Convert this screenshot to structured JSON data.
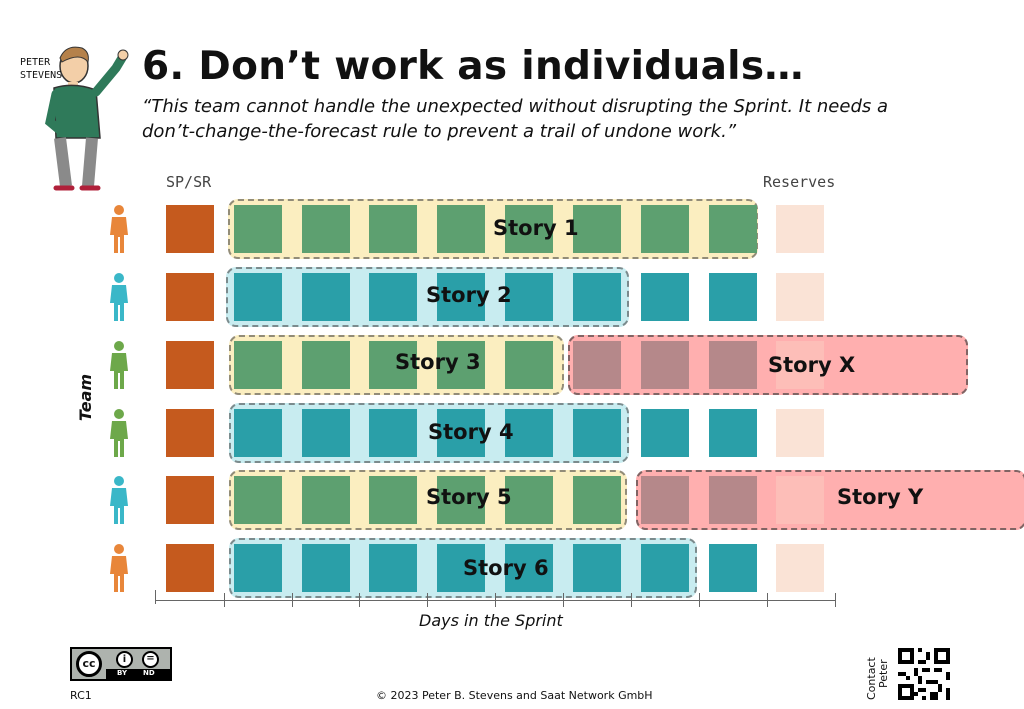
{
  "author_badge": {
    "name_line1": "PETER",
    "name_line2": "STEVENS"
  },
  "title": "6. Don’t work as individuals…",
  "quote": "“This team cannot handle the unexpected without disrupting the Sprint. It needs a don’t-change-the-forecast rule to prevent a trail of undone work.”",
  "column_labels": {
    "sp_sr": "SP/SR",
    "reserves": "Reserves"
  },
  "axis": {
    "y_label": "Team",
    "x_label": "Days in the Sprint"
  },
  "colors": {
    "sp_sr": "#c55a1e",
    "green": "#5da070",
    "teal": "#2a9fa8",
    "slate": "#5b6b70",
    "reserve": "#fae3d6",
    "yellow_band": "#fbeec0",
    "blue_band": "#c8ecf0",
    "red_band": "#ffb8b8",
    "person_orange": "#e8863a",
    "person_cyan": "#3ab7c8",
    "person_green": "#6da84a"
  },
  "team": [
    {
      "person_color": "orange",
      "cells": [
        "green",
        "green",
        "green",
        "green",
        "green",
        "green",
        "green",
        "green"
      ]
    },
    {
      "person_color": "cyan",
      "cells": [
        "teal",
        "teal",
        "teal",
        "teal",
        "teal",
        "teal",
        "teal",
        "teal"
      ]
    },
    {
      "person_color": "green",
      "cells": [
        "green",
        "green",
        "green",
        "green",
        "green",
        "slate",
        "slate",
        "slate"
      ]
    },
    {
      "person_color": "green",
      "cells": [
        "teal",
        "teal",
        "teal",
        "teal",
        "teal",
        "teal",
        "teal",
        "teal"
      ]
    },
    {
      "person_color": "cyan",
      "cells": [
        "green",
        "green",
        "green",
        "green",
        "green",
        "green",
        "slate",
        "slate"
      ]
    },
    {
      "person_color": "orange",
      "cells": [
        "teal",
        "teal",
        "teal",
        "teal",
        "teal",
        "teal",
        "teal",
        "teal"
      ]
    }
  ],
  "stories": [
    {
      "label": "Story 1",
      "color": "yellow"
    },
    {
      "label": "Story 2",
      "color": "blue"
    },
    {
      "label": "Story 3",
      "color": "yellow"
    },
    {
      "label": "Story X",
      "color": "red"
    },
    {
      "label": "Story 4",
      "color": "blue"
    },
    {
      "label": "Story 5",
      "color": "yellow"
    },
    {
      "label": "Story Y",
      "color": "red"
    },
    {
      "label": "Story 6",
      "color": "blue"
    }
  ],
  "footer": {
    "license": {
      "cc": "cc",
      "by": "BY",
      "nd": "ND"
    },
    "code": "RC1",
    "copyright": "© 2023 Peter B. Stevens and Saat Network GmbH",
    "contact_line1": "Contact",
    "contact_line2": "Peter"
  }
}
